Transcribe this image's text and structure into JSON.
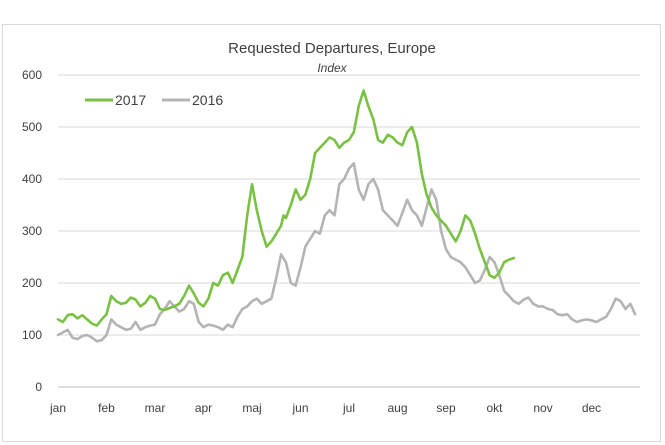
{
  "chart_data": {
    "type": "line",
    "title": "Requested Departures, Europe",
    "subtitle": "Index",
    "xlabel": "",
    "ylabel": "",
    "ylim": [
      0,
      600
    ],
    "yticks": [
      0,
      100,
      200,
      300,
      400,
      500,
      600
    ],
    "xlim": [
      0,
      12
    ],
    "categories": [
      "jan",
      "feb",
      "mar",
      "apr",
      "maj",
      "jun",
      "jul",
      "aug",
      "sep",
      "okt",
      "nov",
      "dec"
    ],
    "grid": true,
    "legend": "top-left",
    "series": [
      {
        "name": "2017",
        "color": "#7ac143",
        "x": [
          0.0,
          0.1,
          0.2,
          0.3,
          0.4,
          0.5,
          0.6,
          0.7,
          0.8,
          0.9,
          1.0,
          1.1,
          1.2,
          1.3,
          1.4,
          1.5,
          1.6,
          1.7,
          1.8,
          1.9,
          2.0,
          2.1,
          2.2,
          2.3,
          2.4,
          2.5,
          2.6,
          2.7,
          2.8,
          2.9,
          3.0,
          3.1,
          3.2,
          3.3,
          3.4,
          3.5,
          3.6,
          3.7,
          3.8,
          3.9,
          4.0,
          4.1,
          4.2,
          4.3,
          4.4,
          4.5,
          4.6,
          4.65,
          4.7,
          4.8,
          4.9,
          5.0,
          5.1,
          5.2,
          5.3,
          5.4,
          5.5,
          5.6,
          5.7,
          5.8,
          5.9,
          6.0,
          6.1,
          6.2,
          6.3,
          6.4,
          6.5,
          6.6,
          6.7,
          6.8,
          6.9,
          7.0,
          7.1,
          7.2,
          7.3,
          7.4,
          7.5,
          7.6,
          7.7,
          7.8,
          7.9,
          8.0,
          8.1,
          8.2,
          8.3,
          8.4,
          8.5,
          8.6,
          8.7,
          8.8,
          8.9,
          9.0,
          9.1,
          9.2,
          9.3,
          9.4
        ],
        "values": [
          130,
          125,
          138,
          140,
          132,
          138,
          130,
          122,
          118,
          130,
          140,
          175,
          165,
          160,
          162,
          172,
          168,
          155,
          162,
          175,
          170,
          150,
          148,
          152,
          155,
          160,
          175,
          195,
          180,
          162,
          155,
          170,
          200,
          195,
          215,
          220,
          200,
          225,
          250,
          330,
          390,
          340,
          300,
          270,
          280,
          295,
          310,
          330,
          325,
          350,
          380,
          360,
          370,
          400,
          450,
          460,
          470,
          480,
          475,
          460,
          470,
          475,
          490,
          540,
          570,
          540,
          515,
          475,
          470,
          485,
          480,
          470,
          465,
          490,
          500,
          470,
          410,
          370,
          345,
          330,
          320,
          310,
          295,
          280,
          300,
          330,
          320,
          295,
          265,
          240,
          215,
          210,
          220,
          240,
          245,
          248
        ]
      },
      {
        "name": "2016",
        "color": "#b4b4b4",
        "x": [
          0.0,
          0.1,
          0.2,
          0.3,
          0.4,
          0.5,
          0.6,
          0.7,
          0.8,
          0.9,
          1.0,
          1.1,
          1.2,
          1.3,
          1.4,
          1.5,
          1.6,
          1.7,
          1.8,
          1.9,
          2.0,
          2.1,
          2.2,
          2.3,
          2.4,
          2.5,
          2.6,
          2.7,
          2.8,
          2.9,
          3.0,
          3.1,
          3.2,
          3.3,
          3.4,
          3.5,
          3.6,
          3.7,
          3.8,
          3.9,
          4.0,
          4.1,
          4.2,
          4.3,
          4.4,
          4.5,
          4.6,
          4.7,
          4.8,
          4.9,
          5.0,
          5.1,
          5.2,
          5.3,
          5.4,
          5.5,
          5.6,
          5.7,
          5.8,
          5.9,
          6.0,
          6.1,
          6.2,
          6.3,
          6.4,
          6.5,
          6.6,
          6.7,
          6.8,
          6.9,
          7.0,
          7.1,
          7.2,
          7.3,
          7.4,
          7.5,
          7.6,
          7.7,
          7.8,
          7.9,
          8.0,
          8.1,
          8.2,
          8.3,
          8.4,
          8.5,
          8.6,
          8.7,
          8.8,
          8.9,
          9.0,
          9.1,
          9.2,
          9.3,
          9.4,
          9.5,
          9.6,
          9.7,
          9.8,
          9.9,
          10.0,
          10.1,
          10.2,
          10.3,
          10.4,
          10.5,
          10.6,
          10.7,
          10.8,
          10.9,
          11.0,
          11.1,
          11.2,
          11.3,
          11.4,
          11.5,
          11.6,
          11.7,
          11.8,
          11.9
        ],
        "values": [
          100,
          105,
          110,
          95,
          92,
          98,
          100,
          95,
          88,
          90,
          100,
          130,
          120,
          115,
          110,
          112,
          125,
          110,
          115,
          118,
          120,
          140,
          150,
          165,
          155,
          145,
          150,
          165,
          160,
          125,
          115,
          120,
          118,
          115,
          110,
          120,
          115,
          135,
          150,
          155,
          165,
          170,
          160,
          165,
          170,
          210,
          255,
          240,
          200,
          195,
          230,
          270,
          285,
          300,
          295,
          330,
          340,
          330,
          390,
          400,
          420,
          430,
          380,
          360,
          390,
          400,
          380,
          340,
          330,
          320,
          310,
          335,
          360,
          340,
          330,
          310,
          345,
          380,
          360,
          300,
          265,
          250,
          245,
          240,
          230,
          215,
          200,
          205,
          225,
          250,
          240,
          215,
          185,
          175,
          165,
          160,
          168,
          172,
          160,
          155,
          155,
          150,
          148,
          140,
          138,
          140,
          130,
          125,
          128,
          130,
          128,
          125,
          130,
          135,
          150,
          170,
          165,
          150,
          160,
          140
        ]
      }
    ]
  }
}
